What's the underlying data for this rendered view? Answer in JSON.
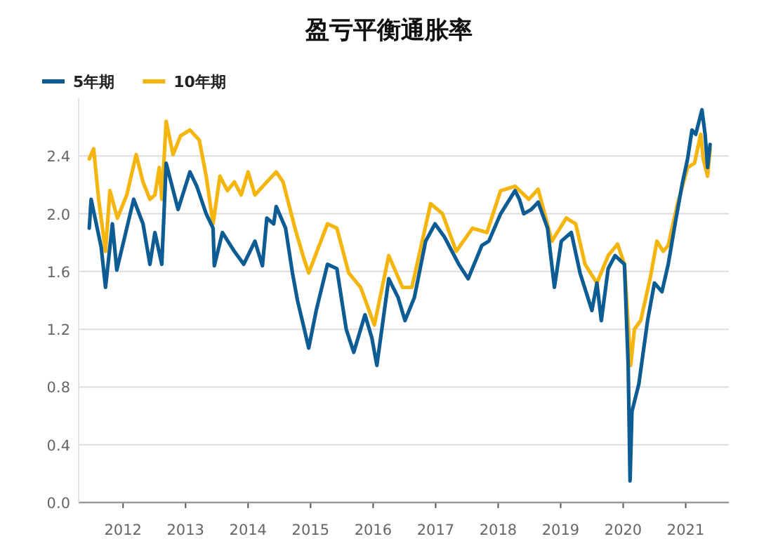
{
  "chart_data": {
    "type": "line",
    "title": "盈亏平衡通胀率",
    "xlim": [
      2011.29,
      2021.69
    ],
    "xticks": [
      2012,
      2013,
      2014,
      2015,
      2016,
      2017,
      2018,
      2019,
      2020,
      2021
    ],
    "ylim": [
      0,
      2.8
    ],
    "yticks": [
      {
        "value": 0,
        "label": "0.0"
      },
      {
        "value": 0.4,
        "label": "0.4"
      },
      {
        "value": 0.8,
        "label": "0.8"
      },
      {
        "value": 1.2,
        "label": "1.2"
      },
      {
        "value": 1.6,
        "label": "1.6"
      },
      {
        "value": 2,
        "label": "2.0"
      },
      {
        "value": 2.4,
        "label": "2.4"
      }
    ],
    "grid": "y",
    "legend": "top left",
    "marker": "none",
    "line_style": "solid",
    "series": [
      {
        "name": "5年期",
        "color": "#0d5c94",
        "x": [
          2011.46,
          2011.49,
          2011.65,
          2011.72,
          2011.83,
          2011.9,
          2012.17,
          2012.32,
          2012.43,
          2012.51,
          2012.62,
          2012.69,
          2012.88,
          2013.07,
          2013.18,
          2013.33,
          2013.44,
          2013.46,
          2013.59,
          2013.78,
          2013.93,
          2014.11,
          2014.23,
          2014.3,
          2014.41,
          2014.45,
          2014.6,
          2014.71,
          2014.79,
          2014.9,
          2014.97,
          2015.09,
          2015.27,
          2015.42,
          2015.57,
          2015.69,
          2015.87,
          2015.98,
          2016.06,
          2016.25,
          2016.4,
          2016.51,
          2016.66,
          2016.84,
          2016.99,
          2017.14,
          2017.37,
          2017.52,
          2017.74,
          2017.85,
          2018.04,
          2018.27,
          2018.34,
          2018.41,
          2018.53,
          2018.64,
          2018.79,
          2018.9,
          2019.01,
          2019.17,
          2019.31,
          2019.5,
          2019.58,
          2019.65,
          2019.76,
          2019.87,
          2020.02,
          2020.08,
          2020.11,
          2020.14,
          2020.25,
          2020.39,
          2020.5,
          2020.62,
          2020.72,
          2020.83,
          2020.95,
          2021.03,
          2021.1,
          2021.16,
          2021.26,
          2021.31,
          2021.35,
          2021.39
        ],
        "values": [
          1.9,
          2.1,
          1.77,
          1.49,
          1.93,
          1.61,
          2.1,
          1.93,
          1.65,
          1.87,
          1.65,
          2.35,
          2.03,
          2.29,
          2.19,
          2.0,
          1.9,
          1.64,
          1.87,
          1.74,
          1.65,
          1.81,
          1.64,
          1.97,
          1.93,
          2.05,
          1.9,
          1.59,
          1.4,
          1.2,
          1.07,
          1.33,
          1.65,
          1.62,
          1.2,
          1.04,
          1.3,
          1.14,
          0.95,
          1.55,
          1.42,
          1.26,
          1.42,
          1.81,
          1.93,
          1.84,
          1.65,
          1.55,
          1.78,
          1.81,
          2.0,
          2.16,
          2.1,
          2.0,
          2.03,
          2.08,
          1.9,
          1.49,
          1.81,
          1.87,
          1.59,
          1.33,
          1.52,
          1.26,
          1.62,
          1.71,
          1.65,
          0.95,
          0.15,
          0.63,
          0.82,
          1.26,
          1.52,
          1.46,
          1.65,
          1.93,
          2.22,
          2.38,
          2.58,
          2.55,
          2.72,
          2.55,
          2.32,
          2.48
        ]
      },
      {
        "name": "10年期",
        "color": "#f5b50f",
        "x": [
          2011.46,
          2011.53,
          2011.61,
          2011.72,
          2011.79,
          2011.91,
          2012.06,
          2012.21,
          2012.32,
          2012.43,
          2012.51,
          2012.58,
          2012.62,
          2012.69,
          2012.8,
          2012.92,
          2013.07,
          2013.22,
          2013.33,
          2013.44,
          2013.55,
          2013.67,
          2013.78,
          2013.89,
          2014.0,
          2014.11,
          2014.3,
          2014.45,
          2014.56,
          2014.75,
          2014.9,
          2014.97,
          2015.27,
          2015.42,
          2015.61,
          2015.8,
          2016.02,
          2016.25,
          2016.47,
          2016.62,
          2016.92,
          2017.11,
          2017.33,
          2017.59,
          2017.82,
          2018.04,
          2018.27,
          2018.49,
          2018.64,
          2018.86,
          2019.09,
          2019.24,
          2019.39,
          2019.58,
          2019.76,
          2019.91,
          2020.02,
          2020.12,
          2020.18,
          2020.28,
          2020.43,
          2020.54,
          2020.64,
          2020.72,
          2020.87,
          2021.03,
          2021.14,
          2021.24,
          2021.28,
          2021.35,
          2021.39
        ],
        "values": [
          2.38,
          2.45,
          2.1,
          1.74,
          2.16,
          1.97,
          2.13,
          2.41,
          2.22,
          2.1,
          2.13,
          2.32,
          2.1,
          2.64,
          2.41,
          2.54,
          2.58,
          2.51,
          2.26,
          1.93,
          2.26,
          2.16,
          2.22,
          2.13,
          2.29,
          2.13,
          2.22,
          2.29,
          2.22,
          1.9,
          1.68,
          1.59,
          1.93,
          1.9,
          1.59,
          1.49,
          1.23,
          1.71,
          1.49,
          1.49,
          2.07,
          2.0,
          1.74,
          1.9,
          1.87,
          2.16,
          2.19,
          2.1,
          2.17,
          1.81,
          1.97,
          1.93,
          1.65,
          1.52,
          1.71,
          1.79,
          1.65,
          0.95,
          1.2,
          1.26,
          1.55,
          1.81,
          1.74,
          1.78,
          2.07,
          2.32,
          2.35,
          2.55,
          2.38,
          2.26,
          2.45
        ]
      }
    ]
  }
}
